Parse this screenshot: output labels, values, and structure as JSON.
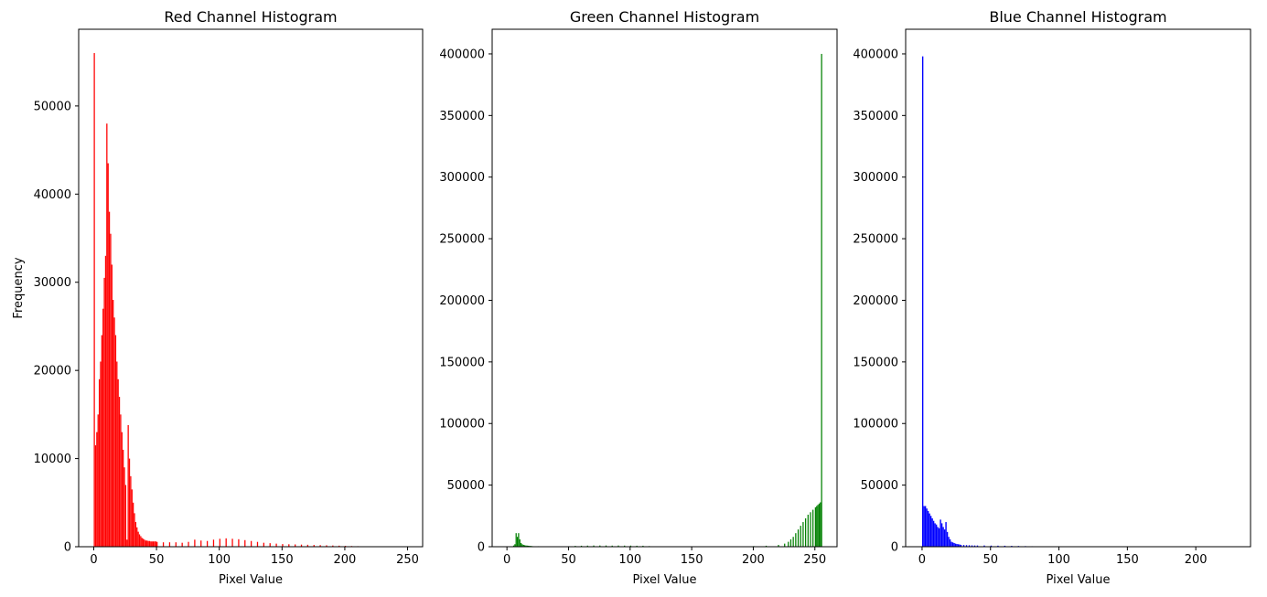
{
  "chart_data": [
    {
      "type": "bar",
      "title": "Red Channel Histogram",
      "xlabel": "Pixel Value",
      "ylabel": "Frequency",
      "xlim": [
        -12,
        262
      ],
      "ylim": [
        0,
        58700
      ],
      "xticks": [
        0,
        50,
        100,
        150,
        200,
        250
      ],
      "yticks": [
        0,
        10000,
        20000,
        30000,
        40000,
        50000
      ],
      "grid": false,
      "color": "#ff0000",
      "series": [
        {
          "x": [
            0,
            1,
            2,
            3,
            4,
            5,
            6,
            7,
            8,
            9,
            10,
            11,
            12,
            13,
            14,
            15,
            16,
            17,
            18,
            19,
            20,
            21,
            22,
            23,
            24,
            25,
            26,
            27,
            28,
            29,
            30,
            31,
            32,
            33,
            34,
            35,
            36,
            37,
            38,
            39,
            40,
            41,
            42,
            43,
            44,
            45,
            46,
            47,
            48,
            49,
            50,
            55,
            60,
            65,
            70,
            75,
            80,
            85,
            90,
            95,
            100,
            105,
            110,
            115,
            120,
            125,
            130,
            135,
            140,
            145,
            150,
            155,
            160,
            165,
            170,
            175,
            180,
            185,
            190,
            195,
            200,
            205,
            210,
            215,
            220,
            225,
            230,
            235,
            240,
            245
          ],
          "values": [
            56000,
            11500,
            13000,
            15000,
            19000,
            21000,
            24000,
            27000,
            30500,
            33000,
            48000,
            43500,
            38000,
            35500,
            32000,
            28000,
            26000,
            24000,
            21000,
            19000,
            17000,
            15000,
            13000,
            11000,
            9000,
            7000,
            800,
            13800,
            10000,
            8000,
            6500,
            5000,
            3800,
            2800,
            2200,
            1700,
            1400,
            1200,
            1000,
            900,
            800,
            700,
            700,
            650,
            650,
            600,
            600,
            600,
            600,
            600,
            550,
            500,
            500,
            500,
            450,
            550,
            800,
            700,
            650,
            800,
            900,
            950,
            900,
            850,
            750,
            650,
            550,
            450,
            400,
            350,
            300,
            280,
            260,
            240,
            220,
            200,
            180,
            160,
            140,
            120,
            100,
            80,
            60,
            40,
            30,
            20,
            10,
            5,
            2,
            1
          ]
        }
      ]
    },
    {
      "type": "bar",
      "title": "Green Channel Histogram",
      "xlabel": "Pixel Value",
      "ylabel": "",
      "xlim": [
        -12,
        268
      ],
      "ylim": [
        0,
        420000
      ],
      "xticks": [
        0,
        50,
        100,
        150,
        200,
        250
      ],
      "yticks": [
        0,
        50000,
        100000,
        150000,
        200000,
        250000,
        300000,
        350000,
        400000
      ],
      "grid": false,
      "color": "#008000",
      "series": [
        {
          "x": [
            5,
            6,
            7,
            8,
            9,
            10,
            11,
            12,
            13,
            14,
            15,
            16,
            17,
            18,
            19,
            20,
            25,
            30,
            35,
            40,
            45,
            50,
            55,
            60,
            65,
            70,
            75,
            80,
            85,
            90,
            95,
            100,
            105,
            110,
            115,
            120,
            130,
            140,
            150,
            160,
            170,
            180,
            190,
            200,
            210,
            220,
            225,
            228,
            230,
            232,
            234,
            236,
            238,
            240,
            242,
            244,
            246,
            248,
            250,
            251,
            252,
            253,
            254,
            255
          ],
          "values": [
            1000,
            2000,
            11000,
            8000,
            11000,
            6000,
            3000,
            2000,
            1500,
            1200,
            1000,
            900,
            800,
            700,
            600,
            500,
            400,
            300,
            250,
            250,
            300,
            400,
            700,
            800,
            900,
            1000,
            1000,
            1000,
            900,
            1000,
            900,
            900,
            800,
            800,
            500,
            300,
            200,
            150,
            150,
            150,
            150,
            200,
            300,
            500,
            800,
            1500,
            2500,
            4000,
            6000,
            8000,
            11000,
            14000,
            17000,
            20000,
            23000,
            26000,
            28000,
            30000,
            32000,
            33000,
            34000,
            35000,
            36000,
            400000
          ]
        }
      ]
    },
    {
      "type": "bar",
      "title": "Blue Channel Histogram",
      "xlabel": "Pixel Value",
      "ylabel": "",
      "xlim": [
        -12,
        240
      ],
      "ylim": [
        0,
        420000
      ],
      "xticks": [
        0,
        50,
        100,
        150,
        200
      ],
      "yticks": [
        0,
        50000,
        100000,
        150000,
        200000,
        250000,
        300000,
        350000,
        400000
      ],
      "grid": false,
      "color": "#0000ff",
      "series": [
        {
          "x": [
            0,
            1,
            2,
            3,
            4,
            5,
            6,
            7,
            8,
            9,
            10,
            11,
            12,
            13,
            14,
            15,
            16,
            17,
            18,
            19,
            20,
            21,
            22,
            23,
            24,
            25,
            26,
            27,
            28,
            30,
            32,
            34,
            36,
            38,
            40,
            45,
            50,
            55,
            60,
            65,
            70,
            75,
            80,
            85,
            90,
            95,
            100,
            110,
            120,
            140,
            160,
            180,
            200,
            220
          ],
          "values": [
            398000,
            33000,
            33000,
            31000,
            29000,
            27000,
            25000,
            23000,
            21000,
            19000,
            18000,
            16000,
            15000,
            22000,
            19000,
            16000,
            14000,
            20000,
            12000,
            8000,
            6000,
            4000,
            3500,
            3000,
            2500,
            2200,
            2000,
            1800,
            1500,
            1400,
            1300,
            1200,
            1100,
            1000,
            1000,
            1000,
            900,
            850,
            800,
            700,
            600,
            500,
            400,
            300,
            200,
            150,
            100,
            80,
            50,
            30,
            20,
            10,
            5,
            2
          ]
        }
      ]
    }
  ]
}
